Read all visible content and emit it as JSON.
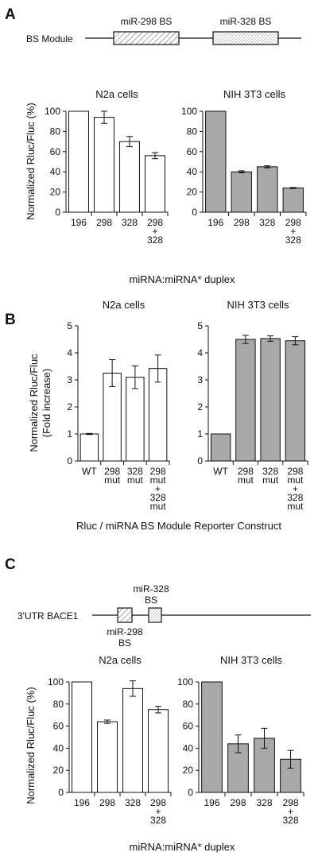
{
  "panels": {
    "a": {
      "letter": "A",
      "module_label": "BS Module",
      "site1_label": "miR-298 BS",
      "site2_label": "miR-328 BS",
      "ylabel": "Normalized Rluc/Fluc (%)",
      "xlabel": "miRNA:miRNA* duplex"
    },
    "b": {
      "letter": "B",
      "ylabel_line1": "Normalized Rluc/Fluc",
      "ylabel_line2": "(Fold increase)",
      "xlabel": "Rluc / miRNA BS Module Reporter Construct"
    },
    "c": {
      "letter": "C",
      "utr_label": "3'UTR BACE1",
      "site_top_line1": "miR-328",
      "site_top_line2": "BS",
      "site_bottom_line1": "miR-298",
      "site_bottom_line2": "BS",
      "ylabel": "Normalized Rluc/Fluc (%)",
      "xlabel": "miRNA:miRNA* duplex"
    }
  },
  "colors": {
    "n2a_bar": "#ffffff",
    "nih_bar": "#a9a9a9",
    "stroke": "#111111"
  },
  "chart_data": [
    {
      "id": "A-N2a",
      "type": "bar",
      "title": "N2a cells",
      "categories": [
        [
          "196"
        ],
        [
          "298"
        ],
        [
          "328"
        ],
        [
          "298",
          "+",
          "328"
        ]
      ],
      "values": [
        100,
        94,
        70,
        56
      ],
      "errors": [
        0,
        6,
        5,
        3
      ],
      "yticks": [
        0,
        20,
        40,
        60,
        80,
        100
      ],
      "ylim": [
        0,
        100
      ],
      "fill": "white"
    },
    {
      "id": "A-NIH3T3",
      "type": "bar",
      "title": "NIH 3T3 cells",
      "categories": [
        [
          "196"
        ],
        [
          "298"
        ],
        [
          "328"
        ],
        [
          "298",
          "+",
          "328"
        ]
      ],
      "values": [
        100,
        40,
        45,
        24
      ],
      "errors": [
        0,
        1,
        1,
        0.5
      ],
      "yticks": [
        0,
        20,
        40,
        60,
        80,
        100
      ],
      "ylim": [
        0,
        100
      ],
      "fill": "gray"
    },
    {
      "id": "B-N2a",
      "type": "bar",
      "title": "N2a cells",
      "categories": [
        [
          "WT"
        ],
        [
          "298",
          "mut"
        ],
        [
          "328",
          "mut"
        ],
        [
          "298",
          "mut",
          "+",
          "328",
          "mut"
        ]
      ],
      "values": [
        1.0,
        3.25,
        3.1,
        3.42
      ],
      "errors": [
        0.02,
        0.5,
        0.42,
        0.5
      ],
      "yticks": [
        0,
        1,
        2,
        3,
        4,
        5
      ],
      "ylim": [
        0,
        5
      ],
      "fill": "white"
    },
    {
      "id": "B-NIH3T3",
      "type": "bar",
      "title": "NIH 3T3 cells",
      "categories": [
        [
          "WT"
        ],
        [
          "298",
          "mut"
        ],
        [
          "328",
          "mut"
        ],
        [
          "298",
          "mut",
          "+",
          "328",
          "mut"
        ]
      ],
      "values": [
        1.0,
        4.5,
        4.53,
        4.45
      ],
      "errors": [
        0,
        0.15,
        0.1,
        0.15
      ],
      "yticks": [
        0,
        1,
        2,
        3,
        4,
        5
      ],
      "ylim": [
        0,
        5
      ],
      "fill": "gray"
    },
    {
      "id": "C-N2a",
      "type": "bar",
      "title": "N2a cells",
      "categories": [
        [
          "196"
        ],
        [
          "298"
        ],
        [
          "328"
        ],
        [
          "298",
          "+",
          "328"
        ]
      ],
      "values": [
        100,
        64,
        94,
        75
      ],
      "errors": [
        0,
        1.5,
        7,
        3
      ],
      "yticks": [
        0,
        20,
        40,
        60,
        80,
        100
      ],
      "ylim": [
        0,
        100
      ],
      "fill": "white"
    },
    {
      "id": "C-NIH3T3",
      "type": "bar",
      "title": "NIH 3T3 cells",
      "categories": [
        [
          "196"
        ],
        [
          "298"
        ],
        [
          "328"
        ],
        [
          "298",
          "+",
          "328"
        ]
      ],
      "values": [
        100,
        44,
        49,
        30
      ],
      "errors": [
        0,
        8,
        9,
        8
      ],
      "yticks": [
        0,
        20,
        40,
        60,
        80,
        100
      ],
      "ylim": [
        0,
        100
      ],
      "fill": "gray"
    }
  ]
}
